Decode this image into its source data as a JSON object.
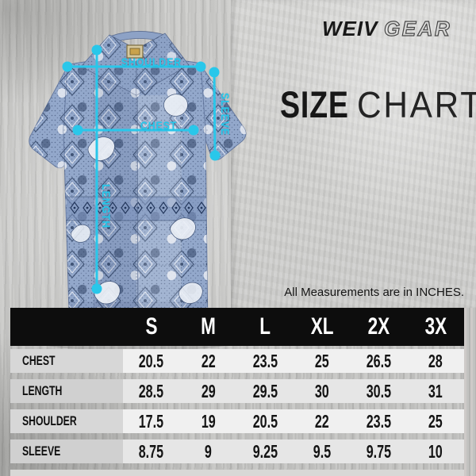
{
  "brand": {
    "name_primary": "WEIV",
    "name_secondary": "GEAR"
  },
  "headline": {
    "word_bold": "SIZE",
    "word_light": "CHART"
  },
  "note": "All Measurements are in INCHES.",
  "overlay_labels": {
    "shoulder": "SHOULDER",
    "sleeve": "SLEEVE",
    "chest": "CHEST",
    "length": "LENGTH"
  },
  "colors": {
    "accent_cyan": "#29c7ea",
    "table_header_bg": "#0d0d0d",
    "shirt_base": "#93a8cb",
    "shirt_motif_navy": "#2d4062",
    "shirt_motif_white": "#eaeef5",
    "collar_inner_cream": "#d9c9a3"
  },
  "chart_data": {
    "type": "table",
    "title": "SIZE CHART",
    "units_note": "All Measurements are in INCHES.",
    "columns": [
      "S",
      "M",
      "L",
      "XL",
      "2X",
      "3X"
    ],
    "rows": [
      {
        "label": "CHEST",
        "values": [
          "20.5",
          "22",
          "23.5",
          "25",
          "26.5",
          "28"
        ]
      },
      {
        "label": "LENGTH",
        "values": [
          "28.5",
          "29",
          "29.5",
          "30",
          "30.5",
          "31"
        ]
      },
      {
        "label": "SHOULDER",
        "values": [
          "17.5",
          "19",
          "20.5",
          "22",
          "23.5",
          "25"
        ]
      },
      {
        "label": "SLEEVE",
        "values": [
          "8.75",
          "9",
          "9.25",
          "9.5",
          "9.75",
          "10"
        ]
      }
    ]
  }
}
